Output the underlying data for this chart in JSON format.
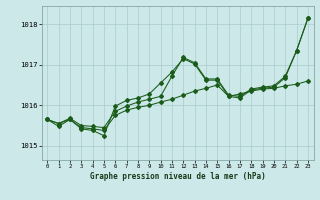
{
  "title": "Graphe pression niveau de la mer (hPa)",
  "background_color": "#cce8e8",
  "grid_color": "#aacccc",
  "line_color": "#1a5c1a",
  "xlim": [
    -0.5,
    23.5
  ],
  "ylim": [
    1014.65,
    1018.45
  ],
  "yticks": [
    1015,
    1016,
    1017,
    1018
  ],
  "xticks": [
    0,
    1,
    2,
    3,
    4,
    5,
    6,
    7,
    8,
    9,
    10,
    11,
    12,
    13,
    14,
    15,
    16,
    17,
    18,
    19,
    20,
    21,
    22,
    23
  ],
  "series_smooth": [
    1015.65,
    1015.55,
    1015.65,
    1015.45,
    1015.42,
    1015.38,
    1015.75,
    1015.88,
    1015.95,
    1016.0,
    1016.08,
    1016.15,
    1016.25,
    1016.35,
    1016.42,
    1016.5,
    1016.22,
    1016.28,
    1016.35,
    1016.4,
    1016.42,
    1016.48,
    1016.52,
    1016.6
  ],
  "series_wavy": [
    1015.65,
    1015.48,
    1015.65,
    1015.42,
    1015.38,
    1015.25,
    1015.98,
    1016.12,
    1016.18,
    1016.28,
    1016.55,
    1016.82,
    1017.15,
    1017.02,
    1016.62,
    1016.62,
    1016.22,
    1016.18,
    1016.38,
    1016.42,
    1016.45,
    1016.68,
    1017.35,
    1018.15
  ],
  "series_diag": [
    1015.65,
    1015.55,
    1015.68,
    1015.5,
    1015.48,
    1015.45,
    1015.85,
    1015.98,
    1016.08,
    1016.15,
    1016.22,
    1016.72,
    1017.18,
    1017.05,
    1016.65,
    1016.65,
    1016.25,
    1016.22,
    1016.4,
    1016.45,
    1016.48,
    1016.72,
    1017.35,
    1018.15
  ]
}
